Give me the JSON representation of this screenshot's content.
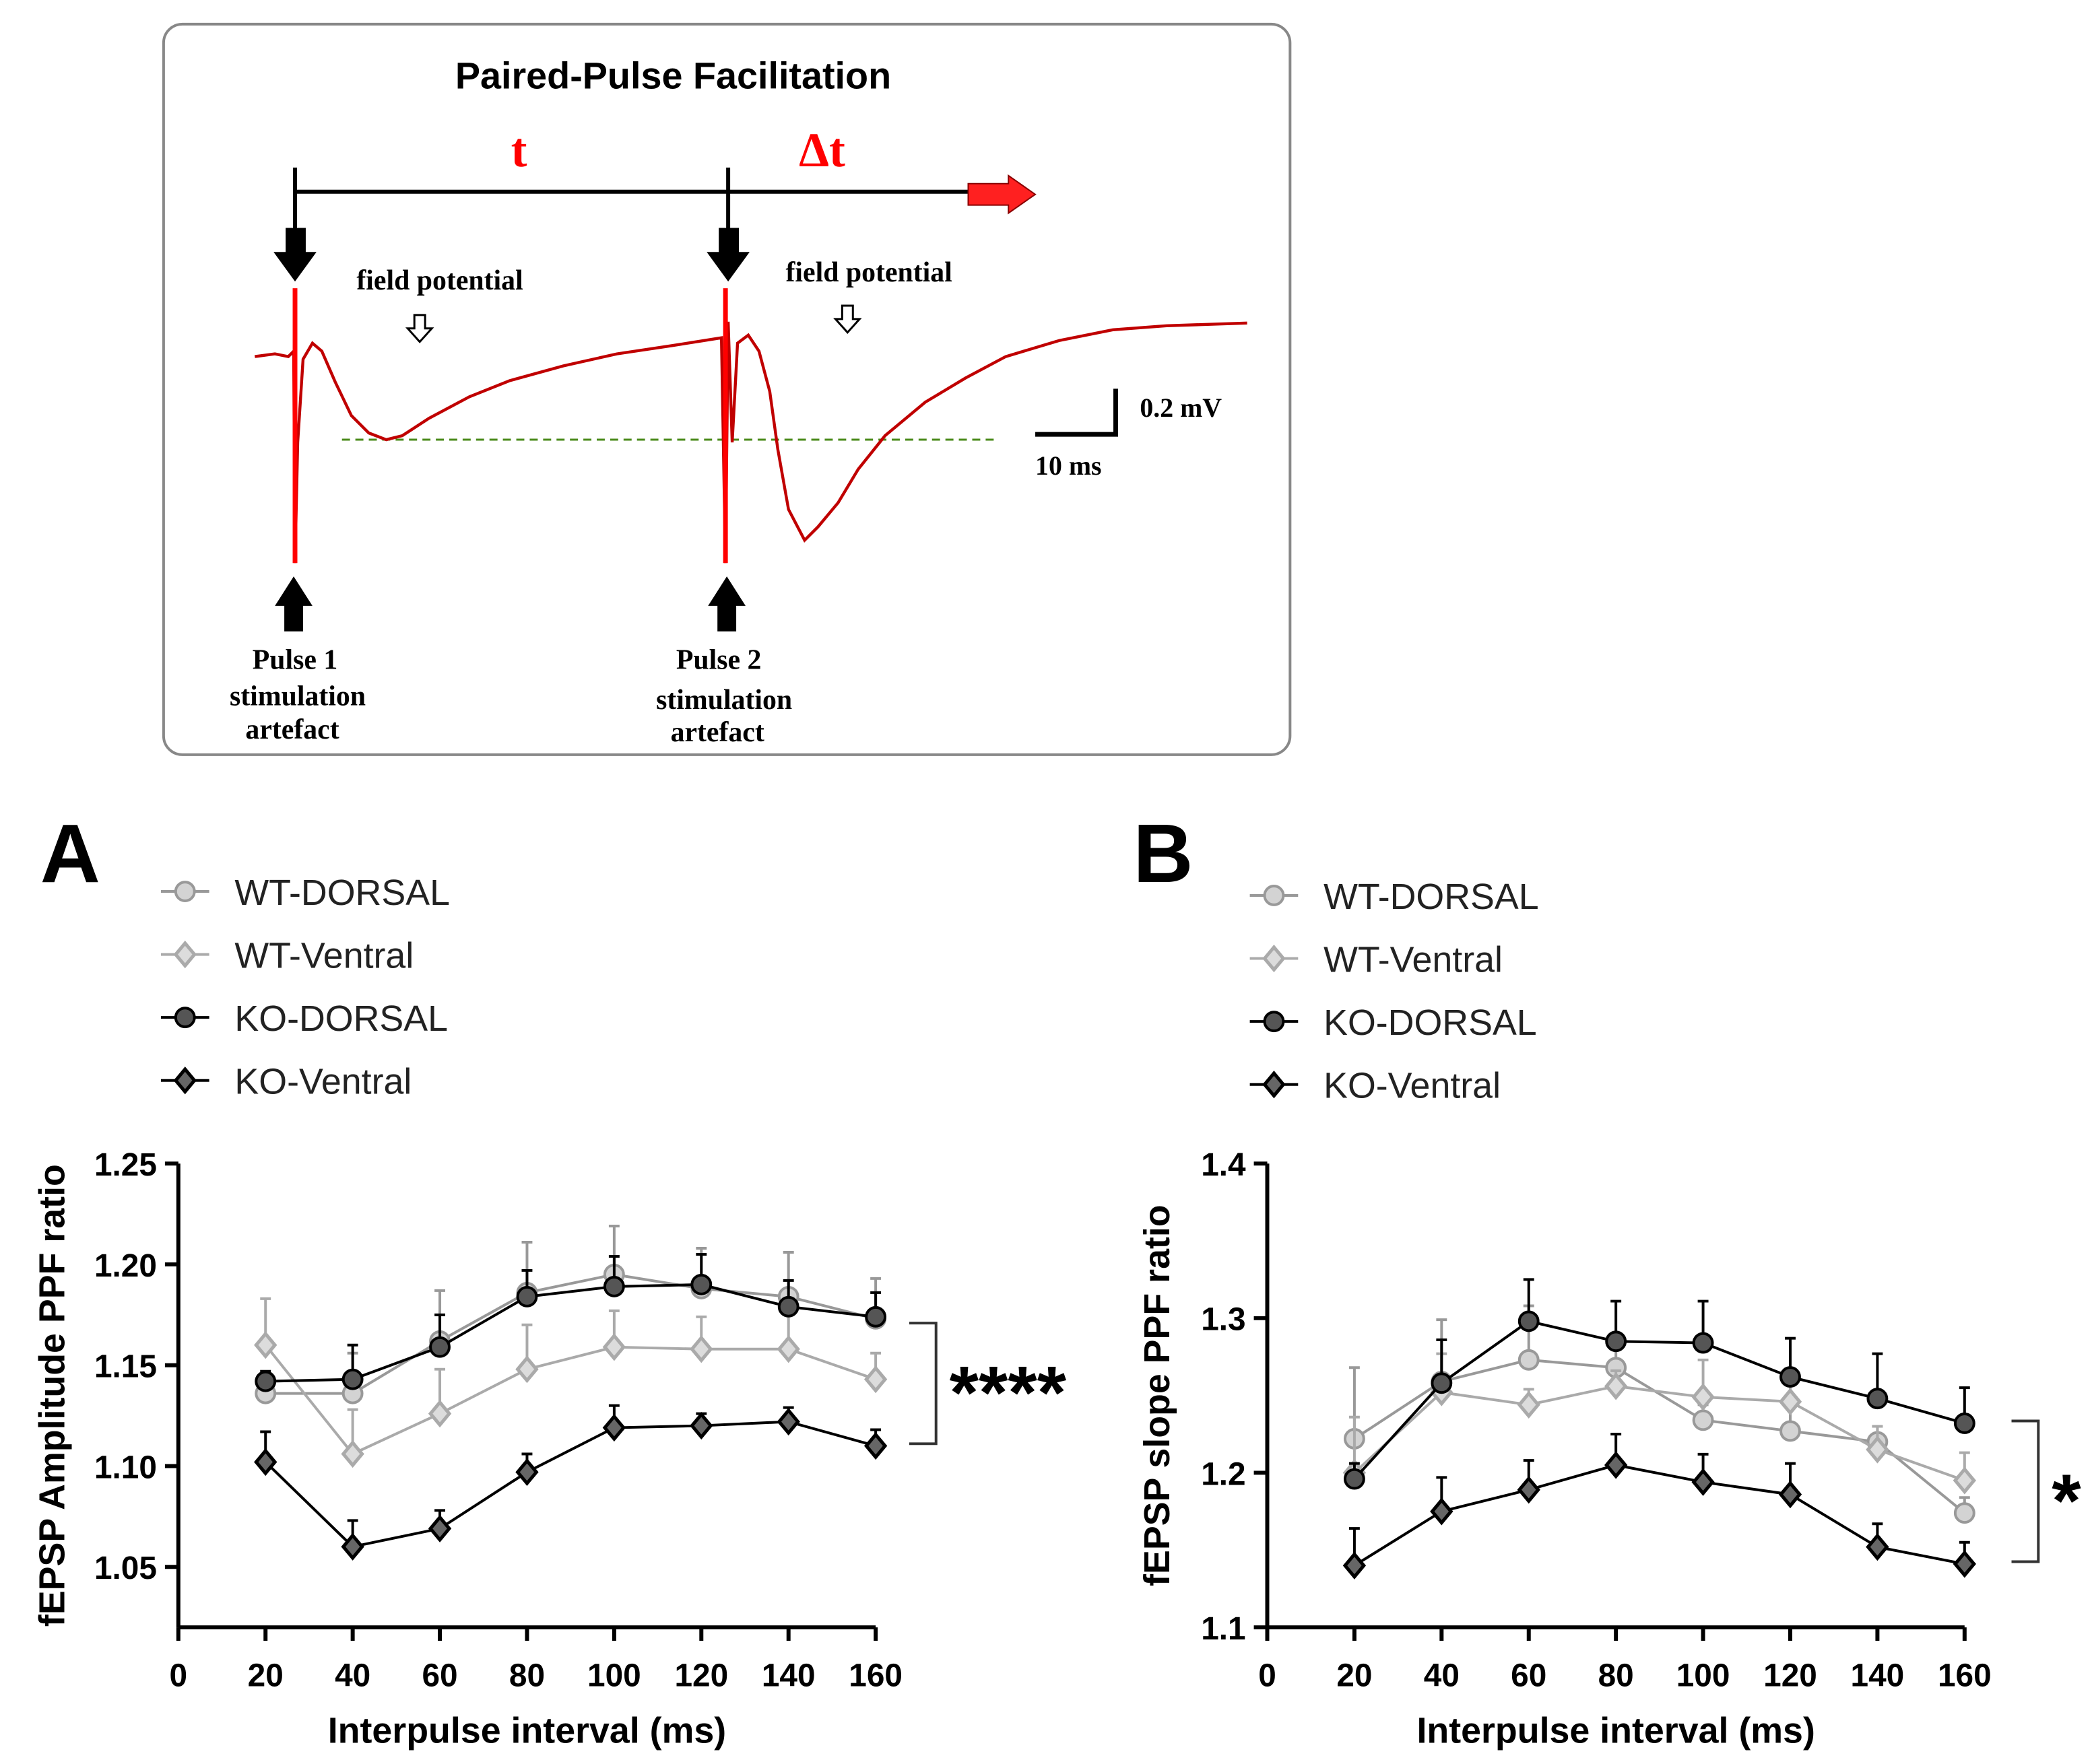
{
  "diagram": {
    "title": "Paired-Pulse Facilitation",
    "t_label": "t",
    "dt_label": "Δt",
    "field_potential_1": "field potential",
    "field_potential_2": "field potential",
    "scale_v": "0.2 mV",
    "scale_t": "10 ms",
    "pulse1": [
      "Pulse 1",
      "stimulation",
      "artefact"
    ],
    "pulse2": [
      "Pulse 2",
      "stimulation",
      "artefact"
    ],
    "colors": {
      "trace": "#c00000",
      "arrow_red": "#ff0000",
      "baseline": "#4a8a1a"
    }
  },
  "panel_labels": {
    "a": "A",
    "b": "B"
  },
  "chart_data": [
    {
      "type": "line",
      "panel": "A",
      "xlabel": "Interpulse interval (ms)",
      "ylabel": "fEPSP Amplitude PPF ratio",
      "xlim": [
        0,
        160
      ],
      "ylim": [
        1.02,
        1.25
      ],
      "xticks": [
        "0",
        "20",
        "40",
        "60",
        "80",
        "100",
        "120",
        "140",
        "160"
      ],
      "yticks": [
        "1.05",
        "1.10",
        "1.15",
        "1.20",
        "1.25"
      ],
      "legend_position": "top-left",
      "x": [
        20,
        40,
        60,
        80,
        100,
        120,
        140,
        160
      ],
      "series": [
        {
          "name": "WT-DORSAL",
          "marker": "circle",
          "fill": "#d3d3d3",
          "stroke": "#999999",
          "line": "#999999",
          "values": [
            1.136,
            1.136,
            1.162,
            1.186,
            1.195,
            1.188,
            1.184,
            1.173
          ],
          "error": [
            0.005,
            0.02,
            0.025,
            0.025,
            0.024,
            0.02,
            0.022,
            0.02
          ]
        },
        {
          "name": "WT-Ventral",
          "marker": "diamond",
          "fill": "#dcdcdc",
          "stroke": "#aaaaaa",
          "line": "#aaaaaa",
          "values": [
            1.16,
            1.106,
            1.126,
            1.148,
            1.159,
            1.158,
            1.158,
            1.143
          ],
          "error": [
            0.023,
            0.022,
            0.022,
            0.022,
            0.018,
            0.016,
            0.02,
            0.013
          ]
        },
        {
          "name": "KO-DORSAL",
          "marker": "circle",
          "fill": "#555555",
          "stroke": "#000000",
          "line": "#000000",
          "values": [
            1.142,
            1.143,
            1.159,
            1.184,
            1.189,
            1.19,
            1.179,
            1.174
          ],
          "error": [
            0.005,
            0.017,
            0.016,
            0.013,
            0.015,
            0.015,
            0.013,
            0.012
          ]
        },
        {
          "name": "KO-Ventral",
          "marker": "diamond",
          "fill": "#666666",
          "stroke": "#000000",
          "line": "#000000",
          "values": [
            1.102,
            1.06,
            1.069,
            1.097,
            1.119,
            1.12,
            1.122,
            1.11
          ],
          "error": [
            0.015,
            0.013,
            0.009,
            0.009,
            0.011,
            0.006,
            0.007,
            0.008
          ]
        }
      ],
      "significance": "****"
    },
    {
      "type": "line",
      "panel": "B",
      "xlabel": "Interpulse interval (ms)",
      "ylabel": "fEPSP slope PPF ratio",
      "xlim": [
        0,
        160
      ],
      "ylim": [
        1.1,
        1.4
      ],
      "xticks": [
        "0",
        "20",
        "40",
        "60",
        "80",
        "100",
        "120",
        "140",
        "160"
      ],
      "yticks": [
        "1.1",
        "1.2",
        "1.3",
        "1.4"
      ],
      "legend_position": "top-left",
      "x": [
        20,
        40,
        60,
        80,
        100,
        120,
        140,
        160
      ],
      "series": [
        {
          "name": "WT-DORSAL",
          "marker": "circle",
          "fill": "#d3d3d3",
          "stroke": "#999999",
          "line": "#999999",
          "values": [
            1.222,
            1.259,
            1.273,
            1.268,
            1.234,
            1.227,
            1.22,
            1.174
          ],
          "error": [
            0.046,
            0.04,
            0.035,
            0.02,
            0.01,
            0.02,
            0.01,
            0.01
          ]
        },
        {
          "name": "WT-Ventral",
          "marker": "diamond",
          "fill": "#dcdcdc",
          "stroke": "#aaaaaa",
          "line": "#aaaaaa",
          "values": [
            1.2,
            1.252,
            1.244,
            1.256,
            1.249,
            1.246,
            1.215,
            1.195
          ],
          "error": [
            0.036,
            0.025,
            0.01,
            0.01,
            0.024,
            0.015,
            0.015,
            0.018
          ]
        },
        {
          "name": "KO-DORSAL",
          "marker": "circle",
          "fill": "#555555",
          "stroke": "#000000",
          "line": "#000000",
          "values": [
            1.196,
            1.258,
            1.298,
            1.285,
            1.284,
            1.262,
            1.248,
            1.232
          ],
          "error": [
            0.01,
            0.028,
            0.027,
            0.026,
            0.027,
            0.025,
            0.029,
            0.023
          ]
        },
        {
          "name": "KO-Ventral",
          "marker": "diamond",
          "fill": "#666666",
          "stroke": "#000000",
          "line": "#000000",
          "values": [
            1.14,
            1.175,
            1.189,
            1.205,
            1.194,
            1.186,
            1.152,
            1.141
          ],
          "error": [
            0.024,
            0.022,
            0.019,
            0.02,
            0.018,
            0.02,
            0.015,
            0.014
          ]
        }
      ],
      "significance": "*"
    }
  ]
}
